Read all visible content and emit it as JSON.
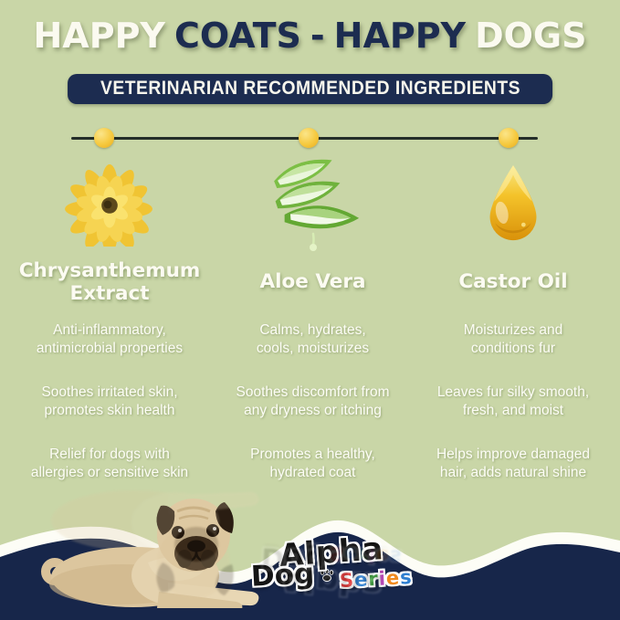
{
  "colors": {
    "background": "#c9d6a7",
    "navy": "#1c2c50",
    "footer_navy": "#17264a",
    "cream": "#fbfaf0",
    "gold": "#f6c93f",
    "timeline_line": "#242e29"
  },
  "header": {
    "title_parts": [
      {
        "text": "HAPPY",
        "tone": "cream"
      },
      {
        "text": "COATS",
        "tone": "navy"
      },
      {
        "text": "-",
        "tone": "navy"
      },
      {
        "text": "HAPPY",
        "tone": "navy"
      },
      {
        "text": "DOGS",
        "tone": "cream"
      }
    ],
    "badge_label": "VETERINARIAN RECOMMENDED INGREDIENTS"
  },
  "ingredients": [
    {
      "icon": "chrysanthemum-flower-icon",
      "name": "Chrysanthemum\nExtract",
      "benefits": [
        "Anti-inflammatory,\nantimicrobial properties",
        "Soothes irritated skin,\npromotes skin health",
        "Relief for dogs with\nallergies or sensitive skin"
      ]
    },
    {
      "icon": "aloe-vera-icon",
      "name": "Aloe Vera",
      "benefits": [
        "Calms, hydrates,\ncools, moisturizes",
        "Soothes discomfort from\nany dryness or itching",
        "Promotes a healthy,\nhydrated coat"
      ]
    },
    {
      "icon": "oil-drop-icon",
      "name": "Castor Oil",
      "benefits": [
        "Moisturizes and\nconditions fur",
        "Leaves fur silky smooth,\nfresh, and moist",
        "Helps improve damaged\nhair, adds natural shine"
      ]
    }
  ],
  "footer": {
    "brand_top": "Alpha",
    "brand_bottom": "Dog",
    "brand_series": "Series",
    "series_colors": [
      "#e03a3a",
      "#2f7fd0",
      "#3fa23f",
      "#b03ab0",
      "#f08a1f",
      "#2f7fd0"
    ]
  }
}
